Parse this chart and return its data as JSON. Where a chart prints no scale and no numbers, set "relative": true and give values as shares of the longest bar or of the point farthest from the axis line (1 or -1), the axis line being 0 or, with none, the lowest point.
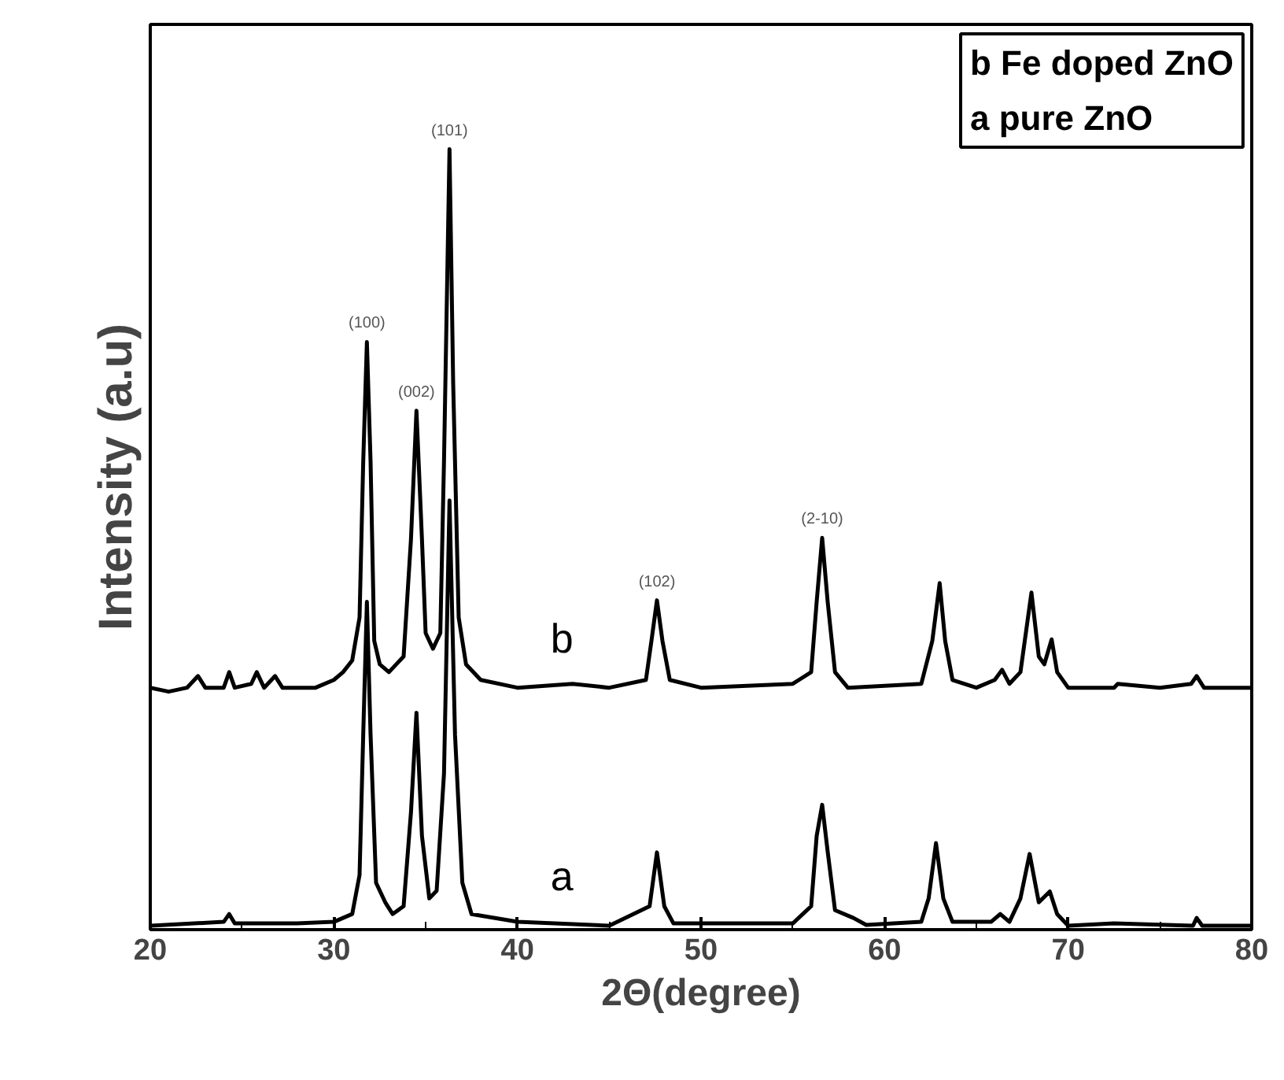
{
  "chart_data": {
    "type": "line",
    "relative": true,
    "xlabel": "2Θ(degree)",
    "ylabel": "Intensity (a.u)",
    "xlim": [
      20,
      80
    ],
    "xticks": [
      20,
      30,
      40,
      50,
      60,
      70,
      80
    ],
    "tick_labels": "x",
    "grid": false,
    "marker": "none",
    "line_style": "solid",
    "annotations": [
      "b Fe doped ZnO",
      "a pure ZnO",
      {
        "text": "(100)",
        "x": 31.8,
        "y": 0.753
      },
      {
        "text": "(002)",
        "x": 34.5,
        "y": 0.665
      },
      {
        "text": "(101)",
        "x": 36.3,
        "y": 1.0
      },
      {
        "text": "(102)",
        "x": 47.6,
        "y": 0.422
      },
      {
        "text": "(2-10)",
        "x": 56.6,
        "y": 0.502
      }
    ],
    "series": [
      {
        "name": "b",
        "color": "#000000",
        "x": [
          20,
          21,
          22,
          22.6,
          23,
          24,
          24.3,
          24.6,
          25.5,
          25.8,
          26.2,
          26.8,
          27.2,
          29,
          30,
          30.5,
          31,
          31.4,
          31.6,
          31.8,
          32.0,
          32.2,
          32.5,
          33,
          33.8,
          34.2,
          34.5,
          34.8,
          35.0,
          35.4,
          35.8,
          36.0,
          36.3,
          36.5,
          36.8,
          37.2,
          38,
          40,
          43,
          45,
          47,
          47.3,
          47.6,
          47.9,
          48.3,
          50,
          55,
          56,
          56.3,
          56.6,
          56.9,
          57.3,
          58,
          62,
          62.6,
          63.0,
          63.3,
          63.7,
          65,
          66.0,
          66.4,
          66.8,
          67.4,
          68.0,
          68.4,
          68.7,
          69.1,
          69.4,
          70,
          72.5,
          72.7,
          75,
          76.7,
          77.0,
          77.4,
          80
        ],
        "values": [
          0.31,
          0.305,
          0.31,
          0.325,
          0.31,
          0.31,
          0.33,
          0.31,
          0.315,
          0.33,
          0.31,
          0.325,
          0.31,
          0.31,
          0.32,
          0.33,
          0.345,
          0.4,
          0.6,
          0.753,
          0.6,
          0.37,
          0.34,
          0.33,
          0.35,
          0.5,
          0.665,
          0.5,
          0.38,
          0.36,
          0.38,
          0.6,
          1.0,
          0.7,
          0.4,
          0.34,
          0.32,
          0.31,
          0.315,
          0.31,
          0.32,
          0.37,
          0.422,
          0.37,
          0.32,
          0.31,
          0.315,
          0.33,
          0.42,
          0.502,
          0.42,
          0.33,
          0.31,
          0.315,
          0.37,
          0.444,
          0.37,
          0.32,
          0.31,
          0.32,
          0.333,
          0.315,
          0.33,
          0.432,
          0.35,
          0.34,
          0.372,
          0.33,
          0.31,
          0.31,
          0.315,
          0.31,
          0.315,
          0.325,
          0.31,
          0.31
        ]
      },
      {
        "name": "a",
        "color": "#000000",
        "x": [
          20,
          24,
          24.3,
          24.6,
          28,
          30,
          31,
          31.4,
          31.6,
          31.8,
          32.0,
          32.3,
          32.8,
          33.2,
          33.8,
          34.2,
          34.5,
          34.8,
          35.2,
          35.6,
          36.0,
          36.3,
          36.6,
          37,
          37.5,
          40,
          45,
          47.2,
          47.6,
          48,
          48.5,
          55,
          56,
          56.3,
          56.6,
          56.9,
          57.3,
          58.3,
          59,
          62,
          62.4,
          62.8,
          63.2,
          63.7,
          65.8,
          66.3,
          66.8,
          67.4,
          67.9,
          68.4,
          69.0,
          69.4,
          70,
          72.5,
          76.8,
          77,
          77.3,
          80
        ],
        "values": [
          0.005,
          0.01,
          0.02,
          0.008,
          0.008,
          0.01,
          0.02,
          0.07,
          0.25,
          0.42,
          0.25,
          0.06,
          0.035,
          0.02,
          0.03,
          0.15,
          0.278,
          0.12,
          0.04,
          0.05,
          0.2,
          0.55,
          0.25,
          0.06,
          0.02,
          0.01,
          0.005,
          0.03,
          0.099,
          0.03,
          0.008,
          0.008,
          0.03,
          0.12,
          0.16,
          0.1,
          0.025,
          0.015,
          0.006,
          0.01,
          0.04,
          0.111,
          0.04,
          0.01,
          0.01,
          0.02,
          0.01,
          0.04,
          0.097,
          0.035,
          0.049,
          0.02,
          0.005,
          0.008,
          0.005,
          0.015,
          0.005,
          0.005
        ]
      }
    ]
  }
}
